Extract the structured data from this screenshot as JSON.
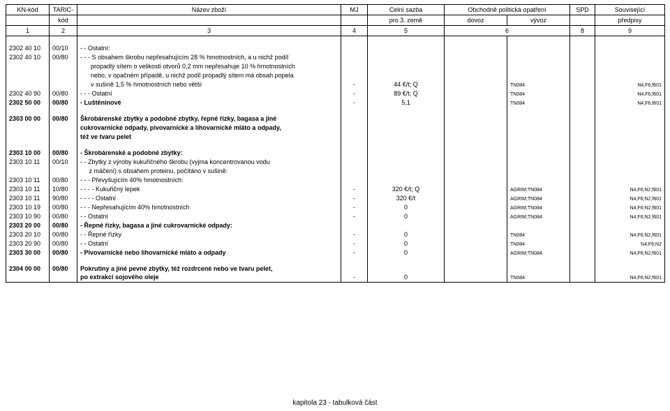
{
  "header": {
    "row1": {
      "c1": "KN-kód",
      "c2": "TARIC-",
      "c3": "Název zboží",
      "c4": "MJ",
      "c5": "Celní sazba",
      "c6": "Obchodně politická opatření",
      "c7": "SPD",
      "c8": "Související"
    },
    "row2": {
      "c2": "kód",
      "c5": "pro 3. země",
      "c6a": "dovoz",
      "c6b": "vývoz",
      "c8": "předpisy"
    },
    "row3": {
      "c1": "1",
      "c2": "2",
      "c3": "3",
      "c4": "4",
      "c5": "5",
      "c6": "6",
      "c7": "7",
      "c8": "8",
      "c9": "9"
    }
  },
  "rows": [
    {
      "kn": "2302 40 10",
      "taric": "00/10",
      "name": "- - Ostatní:"
    },
    {
      "kn": "2302 40 10",
      "taric": "00/80",
      "name": "- - - S obsahem škrobu nepřesahujícím 28 % hmotnostních, a u nichž podíl"
    },
    {
      "name": "      propadlý sítem o velikosti otvorů 0,2 mm nepřesahuje 10 % hmotnostních"
    },
    {
      "name": "      nebo, v opačném případě, u nichž podíl propadlý sítem má obsah popela"
    },
    {
      "name": "      v sušině 1,5 % hmotnostních nebo větší",
      "mj": "-",
      "sazba": "44 €/t;  Q",
      "spd": "TN084",
      "pred": "N4,F6,f601"
    },
    {
      "kn": "2302 40 90",
      "taric": "00/80",
      "name": "- - - Ostatní",
      "mj": "-",
      "sazba": "89 €/t;  Q",
      "spd": "TN084",
      "pred": "N4,F6,f601"
    },
    {
      "kn": "2302 50 00",
      "taric": "00/80",
      "name": "- Luštěninové",
      "mj": "-",
      "sazba": "5,1",
      "spd": "TN084",
      "pred": "N4,F6,f601",
      "bold": true
    },
    {
      "spacer": true
    },
    {
      "kn": "2303 00 00",
      "taric": "00/80",
      "name": "Škrobárenské zbytky a podobné zbytky, řepné řízky, bagasa a jiné",
      "bold": true
    },
    {
      "name": "cukrovarnické odpady, pivovarnické a lihovarnické mláto a odpady,",
      "bold": true
    },
    {
      "name": "též ve tvaru pelet",
      "bold": true
    },
    {
      "spacer": true
    },
    {
      "kn": "2303 10 00",
      "taric": "00/80",
      "name": "- Škrobárenské a podobné zbytky:",
      "bold": true
    },
    {
      "kn": "2303 10 11",
      "taric": "00/10",
      "name": "- - Zbytky z výroby kukuřičného škrobu (vyjma koncentrovanou vodu"
    },
    {
      "name": "     z máčení) s obsahem proteinu, počítáno v sušině:"
    },
    {
      "kn": "2303 10 11",
      "taric": "00/80",
      "name": "- - - Převyšujícím 40% hmotnostních:"
    },
    {
      "kn": "2303 10 11",
      "taric": "10/80",
      "name": "- - - - Kukuřičný lepek",
      "mj": "-",
      "sazba": "320 €/t; Q",
      "spd": "AGRIM;TN084",
      "pred": "N4,F6;N2,f601"
    },
    {
      "kn": "2303 10 11",
      "taric": "90/80",
      "name": "- - - - Ostatní",
      "mj": "-",
      "sazba": "320 €/t",
      "spd": "AGRIM;TN084",
      "pred": "N4,F6;N2,f601"
    },
    {
      "kn": "2303 10 19",
      "taric": "00/80",
      "name": "- - - Nepřesahujícím 40% hmotnostních",
      "mj": "-",
      "sazba": "0",
      "spd": "AGRIM;TN084",
      "pred": "N4,F6;N2,f601"
    },
    {
      "kn": "2303 10 90",
      "taric": "00/80",
      "name": "- - Ostatní",
      "mj": "-",
      "sazba": "0",
      "spd": "AGRIM;TN084",
      "pred": "N4,F6;N2,f601"
    },
    {
      "kn": "2303 20 00",
      "taric": "00/80",
      "name": "- Řepné řízky, bagasa a jiné cukrovarnické odpady:",
      "bold": true
    },
    {
      "kn": "2303 20 10",
      "taric": "00/80",
      "name": "- - Řepné řízky",
      "mj": "-",
      "sazba": "0",
      "spd": "TN084",
      "pred": "N4,F6;N2,f601"
    },
    {
      "kn": "2303 20 90",
      "taric": "00/80",
      "name": "- - Ostatní",
      "mj": "-",
      "sazba": "0",
      "spd": "TN084",
      "pred": "N4,F6;N2"
    },
    {
      "kn": "2303 30 00",
      "taric": "00/80",
      "name": "- Pivovarnické nebo lihovarnické mláto a odpady",
      "mj": "-",
      "sazba": "0",
      "spd": "AGRIM;TN084",
      "pred": "N4,F6;N2,f601",
      "bold": true
    },
    {
      "spacer": true
    },
    {
      "kn": "2304 00 00",
      "taric": "00/80",
      "name": "Pokrutiny a jiné pevné zbytky, též rozdrcené nebo ve tvaru pelet,",
      "bold": true
    },
    {
      "name": "po extrakci sojového oleje",
      "mj": "-",
      "sazba": "0",
      "spd": "TN084",
      "pred": "N4,F6;N2,f601",
      "bold": true
    }
  ],
  "footer": "kapitola 23 - tabulková část",
  "layout": {
    "col_kn": 62,
    "col_taric": 40,
    "col_name": 378,
    "col_mj": 38,
    "col_sazba": 110,
    "col_dovoz": 90,
    "col_vyvoz": 90,
    "col_spd": 36,
    "col_pred": 100
  }
}
